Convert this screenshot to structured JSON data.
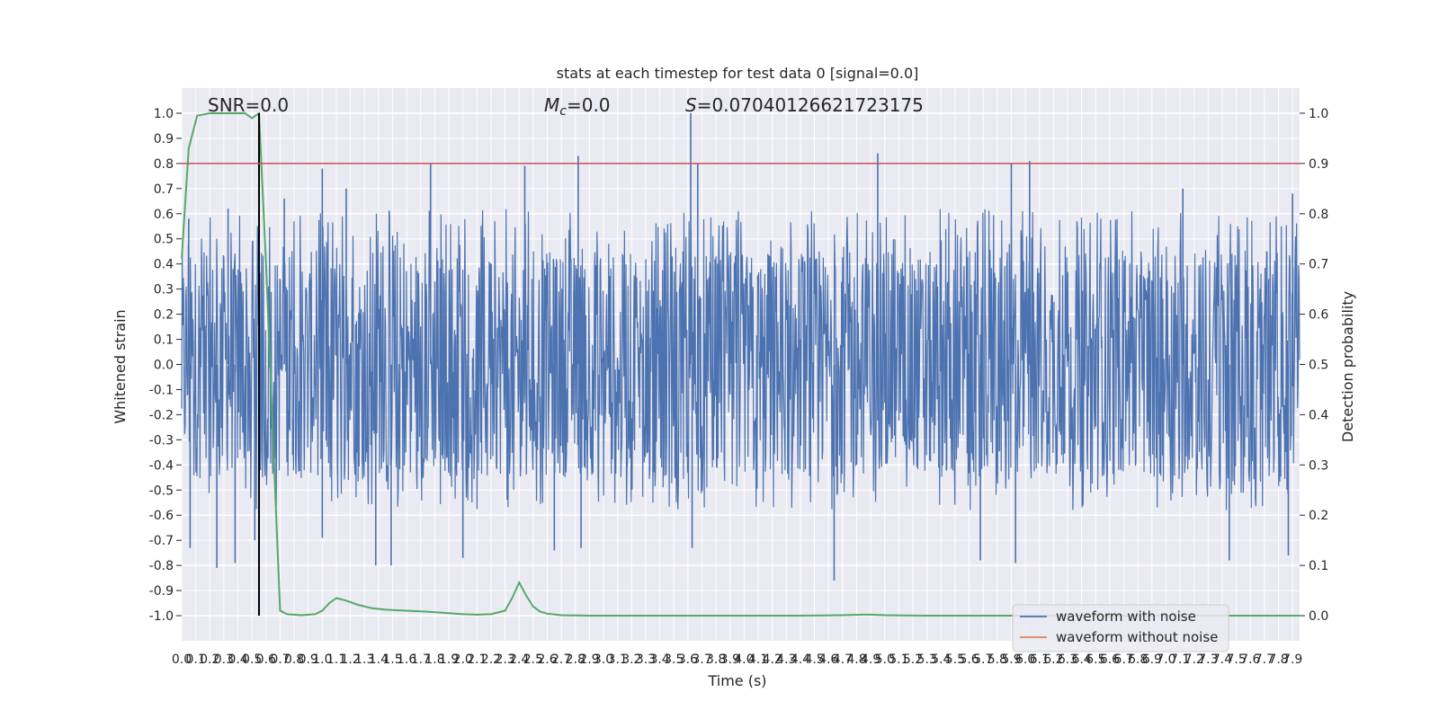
{
  "chart_data": {
    "type": "line",
    "title": "stats at each timestep for test data 0 [signal=0.0]",
    "xlabel": "Time (s)",
    "ylabel": "Whitened strain",
    "y2label": "Detection probability",
    "xlim": [
      0.0,
      7.95
    ],
    "ylim": [
      -1.1,
      1.1
    ],
    "y2lim": [
      -0.05,
      1.05
    ],
    "x_ticks": [
      "0.0",
      "0.1",
      "0.2",
      "0.3",
      "0.4",
      "0.5",
      "0.6",
      "0.7",
      "0.8",
      "0.9",
      "1.0",
      "1.1",
      "1.2",
      "1.3",
      "1.4",
      "1.5",
      "1.6",
      "1.7",
      "1.8",
      "1.9",
      "2.0",
      "2.1",
      "2.2",
      "2.3",
      "2.4",
      "2.5",
      "2.6",
      "2.7",
      "2.8",
      "2.9",
      "3.0",
      "3.1",
      "3.2",
      "3.3",
      "3.4",
      "3.5",
      "3.6",
      "3.7",
      "3.8",
      "3.9",
      "4.0",
      "4.1",
      "4.2",
      "4.3",
      "4.4",
      "4.5",
      "4.6",
      "4.7",
      "4.8",
      "4.9",
      "5.0",
      "5.1",
      "5.2",
      "5.3",
      "5.4",
      "5.5",
      "5.6",
      "5.7",
      "5.8",
      "5.9",
      "6.0",
      "6.1",
      "6.2",
      "6.3",
      "6.4",
      "6.5",
      "6.6",
      "6.7",
      "6.8",
      "6.9",
      "7.0",
      "7.1",
      "7.2",
      "7.3",
      "7.4",
      "7.5",
      "7.6",
      "7.7",
      "7.8",
      "7.9"
    ],
    "y_ticks": [
      "1.0",
      "0.9",
      "0.8",
      "0.7",
      "0.6",
      "0.5",
      "0.4",
      "0.3",
      "0.2",
      "0.1",
      "0.0",
      "-0.1",
      "-0.2",
      "-0.3",
      "-0.4",
      "-0.5",
      "-0.6",
      "-0.7",
      "-0.8",
      "-0.9",
      "-1.0"
    ],
    "y2_ticks": [
      "1.0",
      "0.9",
      "0.8",
      "0.7",
      "0.6",
      "0.5",
      "0.4",
      "0.3",
      "0.2",
      "0.1",
      "0.0"
    ],
    "annotations": {
      "snr": "SNR=0.0",
      "mc_symbol": "M",
      "mc_sub": "c",
      "mc_value": "=0.0",
      "s_symbol": "S",
      "s_value": "=0.07040126621723175"
    },
    "threshold": 0.9,
    "vline_x": 0.55,
    "series": [
      {
        "name": "waveform with noise",
        "color": "#4c72b0",
        "kind": "noise",
        "envelope_hi": 0.62,
        "envelope_lo": -0.58,
        "spikes_hi": [
          [
            0.05,
            0.58
          ],
          [
            0.33,
            0.62
          ],
          [
            0.73,
            0.66
          ],
          [
            1.0,
            0.78
          ],
          [
            1.17,
            0.7
          ],
          [
            1.77,
            0.8
          ],
          [
            2.44,
            0.79
          ],
          [
            2.82,
            0.83
          ],
          [
            3.62,
            1.0
          ],
          [
            3.67,
            0.8
          ],
          [
            4.95,
            0.84
          ],
          [
            5.9,
            0.8
          ],
          [
            6.03,
            0.81
          ],
          [
            7.12,
            0.7
          ],
          [
            7.9,
            0.68
          ]
        ],
        "spikes_lo": [
          [
            0.06,
            -0.73
          ],
          [
            0.25,
            -0.81
          ],
          [
            0.38,
            -0.79
          ],
          [
            0.52,
            -0.7
          ],
          [
            1.0,
            -0.69
          ],
          [
            1.38,
            -0.8
          ],
          [
            1.49,
            -0.8
          ],
          [
            2.0,
            -0.77
          ],
          [
            2.65,
            -0.74
          ],
          [
            2.84,
            -0.73
          ],
          [
            3.63,
            -0.73
          ],
          [
            4.64,
            -0.86
          ],
          [
            5.68,
            -0.78
          ],
          [
            5.93,
            -0.79
          ],
          [
            7.45,
            -0.78
          ],
          [
            7.87,
            -0.76
          ]
        ]
      },
      {
        "name": "waveform without noise",
        "color": "#dd8452",
        "kind": "flat"
      },
      {
        "name": "",
        "color": "#55a868",
        "axis": "right",
        "x": [
          0.0,
          0.05,
          0.11,
          0.2,
          0.3,
          0.4,
          0.45,
          0.5,
          0.55,
          0.6,
          0.65,
          0.7,
          0.75,
          0.85,
          0.95,
          1.0,
          1.05,
          1.1,
          1.17,
          1.25,
          1.35,
          1.45,
          1.6,
          1.75,
          1.9,
          2.0,
          2.1,
          2.2,
          2.3,
          2.35,
          2.4,
          2.45,
          2.5,
          2.55,
          2.6,
          2.7,
          2.9,
          3.2,
          3.6,
          4.0,
          4.4,
          4.7,
          4.85,
          4.9,
          5.0,
          5.3,
          6.0,
          6.5,
          7.0,
          7.5,
          7.95
        ],
        "y": [
          0.71,
          0.93,
          0.995,
          1.0,
          1.0,
          1.0,
          1.0,
          0.99,
          1.0,
          0.7,
          0.35,
          0.01,
          0.003,
          0.001,
          0.003,
          0.01,
          0.025,
          0.035,
          0.03,
          0.022,
          0.015,
          0.012,
          0.01,
          0.008,
          0.005,
          0.003,
          0.002,
          0.003,
          0.01,
          0.035,
          0.066,
          0.04,
          0.018,
          0.008,
          0.004,
          0.001,
          0.0,
          0.0,
          0.0,
          0.0,
          0.0,
          0.001,
          0.002,
          0.002,
          0.001,
          0.0,
          0.0,
          0.0,
          0.0,
          0.0,
          0.0
        ]
      }
    ],
    "legend": {
      "placement": "lower-right",
      "entries": [
        "waveform with noise",
        "waveform without noise"
      ]
    },
    "grid": true,
    "colors": {
      "background": "#eaeaf2",
      "grid": "#ffffff",
      "threshold": "#c44e52",
      "vline": "#000000"
    }
  }
}
